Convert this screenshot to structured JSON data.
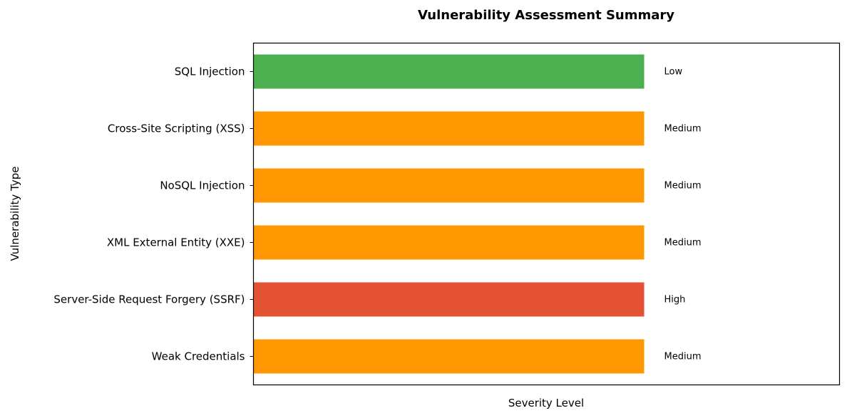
{
  "chart_data": {
    "type": "bar",
    "orientation": "horizontal",
    "title": "Vulnerability Assessment Summary",
    "xlabel": "Severity Level",
    "ylabel": "Vulnerability Type",
    "categories": [
      "SQL Injection",
      "Cross-Site Scripting (XSS)",
      "NoSQL Injection",
      "XML External Entity (XXE)",
      "Server-Side Request Forgery (SSRF)",
      "Weak Credentials"
    ],
    "values": [
      1,
      1,
      1,
      1,
      1,
      1
    ],
    "data_labels": [
      "Low",
      "Medium",
      "Medium",
      "Medium",
      "High",
      "Medium"
    ],
    "xlim": [
      0,
      1.5
    ],
    "x_ticks_visible": false,
    "grid": false,
    "legend": "none",
    "severity_colors": {
      "Low": "#4caf50",
      "Medium": "#ff9800",
      "High": "#e45234"
    }
  }
}
